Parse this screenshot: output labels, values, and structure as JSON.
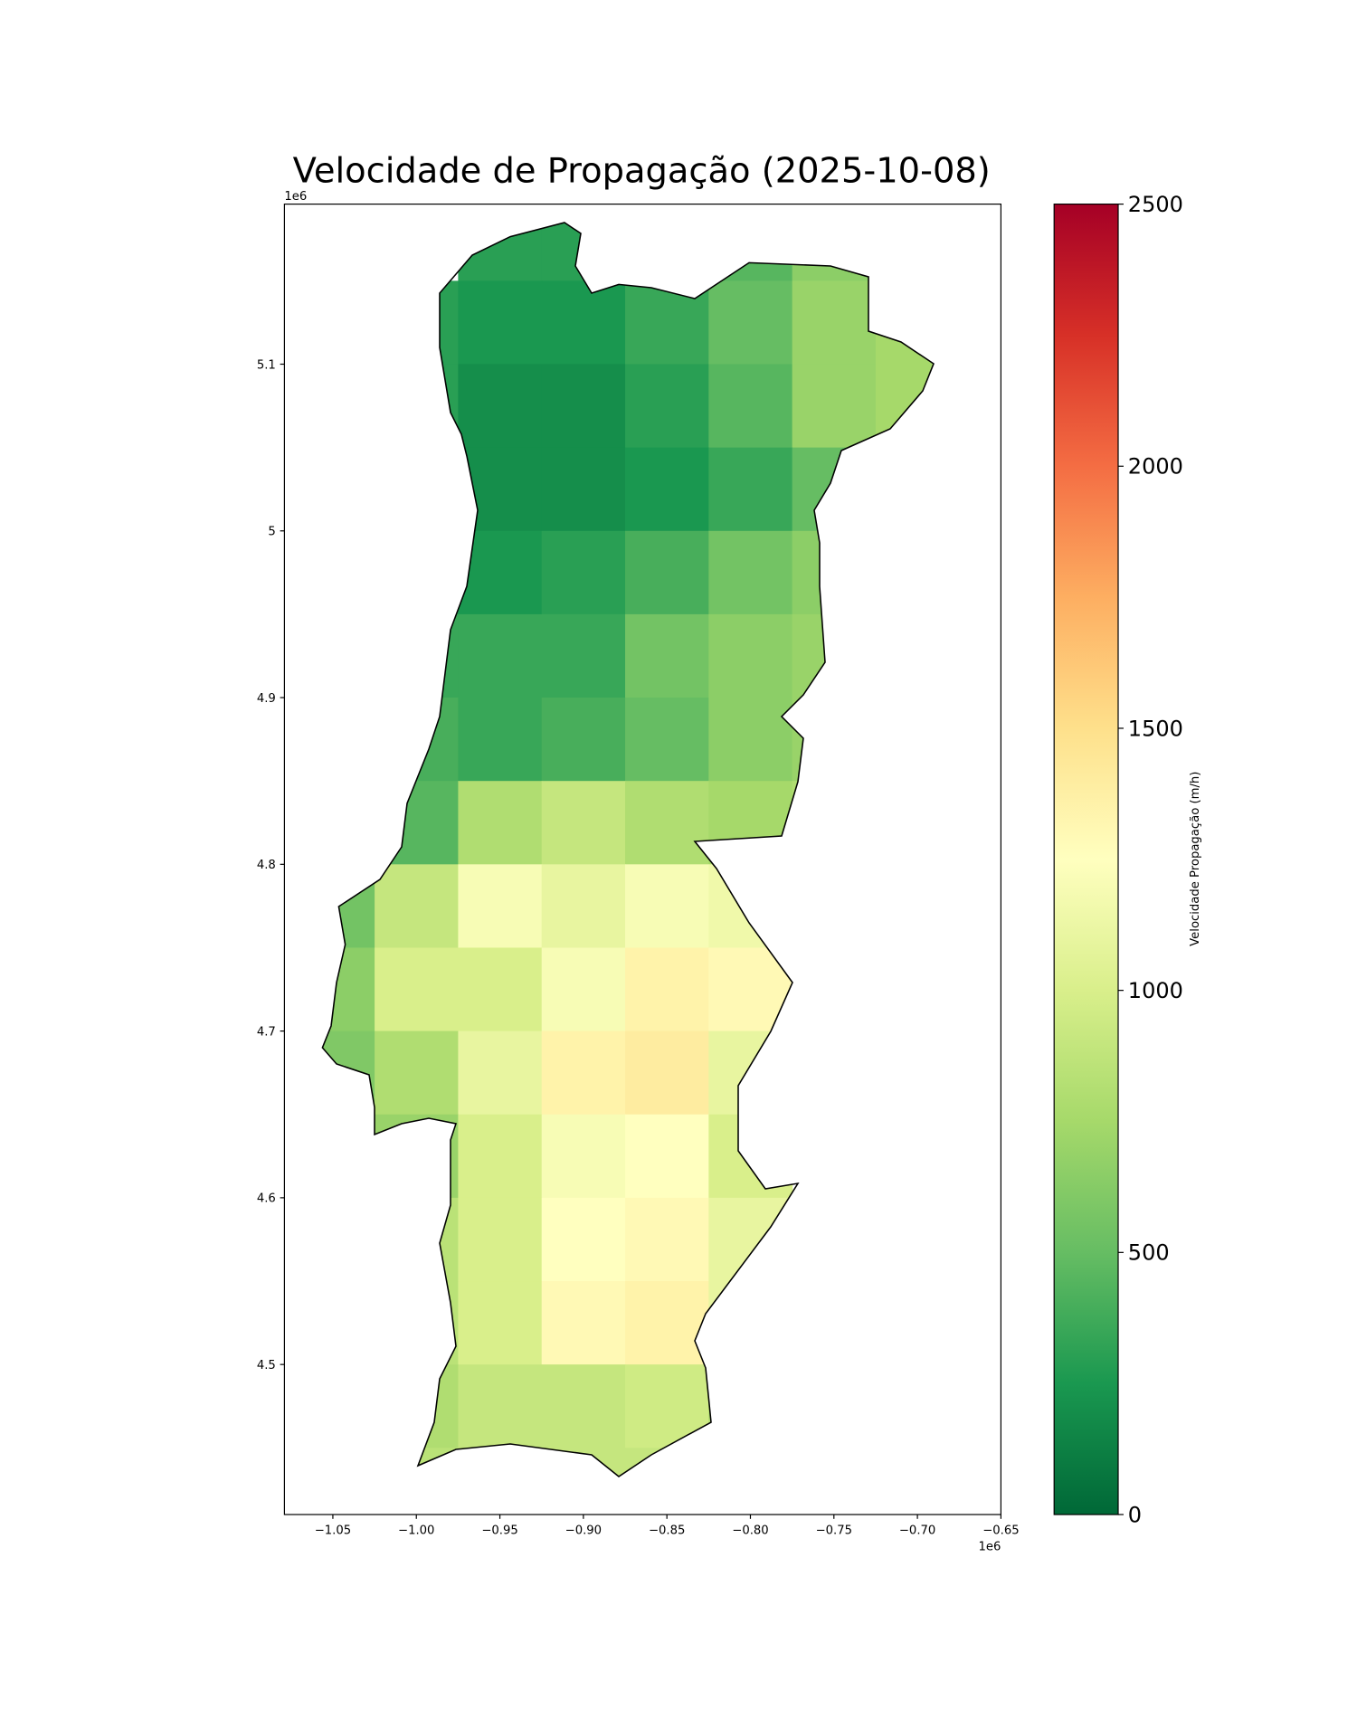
{
  "chart_data": {
    "type": "heatmap",
    "title": "Velocidade de Propagação (2025-10-08)",
    "x_offset_label": "1e6",
    "y_offset_label": "1e6",
    "xlim": [
      -1.079,
      -0.65
    ],
    "ylim": [
      4.41,
      5.196
    ],
    "xticks": [
      {
        "value": -1.05,
        "label": "−1.05"
      },
      {
        "value": -1.0,
        "label": "−1.00"
      },
      {
        "value": -0.95,
        "label": "−0.95"
      },
      {
        "value": -0.9,
        "label": "−0.90"
      },
      {
        "value": -0.85,
        "label": "−0.85"
      },
      {
        "value": -0.8,
        "label": "−0.80"
      },
      {
        "value": -0.75,
        "label": "−0.75"
      },
      {
        "value": -0.7,
        "label": "−0.70"
      },
      {
        "value": -0.65,
        "label": "−0.65"
      }
    ],
    "yticks": [
      4.5,
      4.6,
      4.7,
      4.8,
      4.9,
      5.0,
      5.1
    ],
    "x": [
      -1.05,
      -1.0,
      -0.95,
      -0.9,
      -0.85,
      -0.8,
      -0.75,
      -0.7
    ],
    "y": [
      5.175,
      5.125,
      5.075,
      5.025,
      4.975,
      4.925,
      4.875,
      4.825,
      4.775,
      4.725,
      4.675,
      4.625,
      4.575,
      4.525,
      4.475,
      4.425
    ],
    "values": [
      [
        null,
        null,
        300,
        300,
        350,
        450,
        650,
        null
      ],
      [
        null,
        300,
        250,
        250,
        350,
        500,
        700,
        750
      ],
      [
        null,
        300,
        200,
        200,
        300,
        450,
        700,
        750
      ],
      [
        null,
        250,
        200,
        200,
        250,
        350,
        500,
        null
      ],
      [
        null,
        300,
        250,
        300,
        400,
        550,
        650,
        null
      ],
      [
        null,
        350,
        350,
        350,
        550,
        650,
        700,
        null
      ],
      [
        null,
        400,
        350,
        400,
        500,
        650,
        700,
        null
      ],
      [
        null,
        450,
        800,
        900,
        800,
        750,
        800,
        null
      ],
      [
        550,
        900,
        1200,
        1100,
        1200,
        1150,
        null,
        null
      ],
      [
        650,
        1000,
        1000,
        1200,
        1350,
        1300,
        null,
        null
      ],
      [
        600,
        800,
        1100,
        1350,
        1400,
        1100,
        null,
        null
      ],
      [
        null,
        700,
        1000,
        1200,
        1250,
        1000,
        null,
        null
      ],
      [
        null,
        850,
        1000,
        1250,
        1300,
        1100,
        null,
        null
      ],
      [
        null,
        850,
        1000,
        1300,
        1350,
        1100,
        null,
        null
      ],
      [
        null,
        800,
        900,
        900,
        950,
        800,
        null,
        null
      ],
      [
        null,
        850,
        850,
        900,
        900,
        null,
        null,
        null
      ]
    ],
    "colormap": "RdYlGn_r",
    "clim": [
      0,
      2500
    ],
    "cticks": [
      0,
      500,
      1000,
      1500,
      2000,
      2500
    ],
    "colorbar_label": "Velocidade Propagação (m/h)"
  }
}
